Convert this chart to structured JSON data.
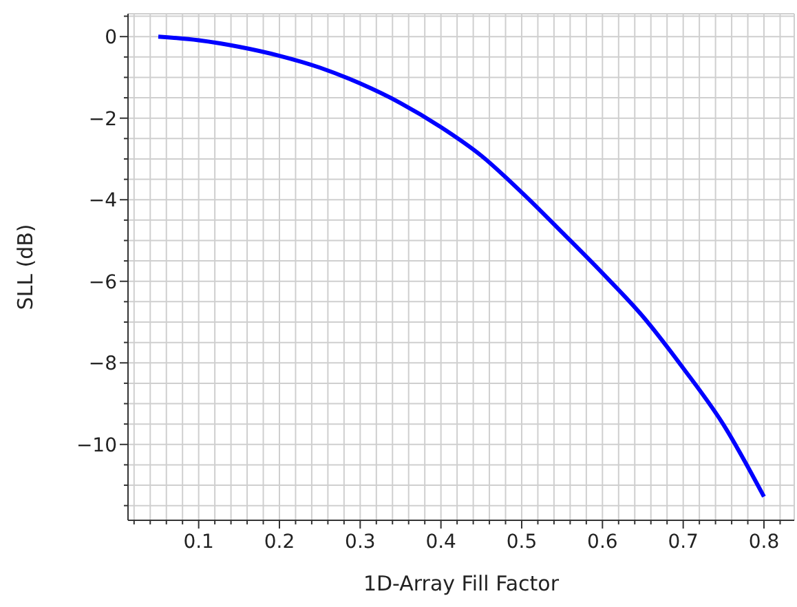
{
  "chart_data": {
    "type": "line",
    "xlabel": "1D-Array Fill Factor",
    "ylabel": "SLL (dB)",
    "x": [
      0.05,
      0.1,
      0.15,
      0.2,
      0.25,
      0.3,
      0.35,
      0.4,
      0.45,
      0.5,
      0.55,
      0.6,
      0.65,
      0.7,
      0.75,
      0.8
    ],
    "series": [
      {
        "color": "#0000ff",
        "values": [
          0,
          -0.09,
          -0.25,
          -0.47,
          -0.76,
          -1.15,
          -1.63,
          -2.22,
          -2.92,
          -3.82,
          -4.8,
          -5.8,
          -6.86,
          -8.13,
          -9.52,
          -11.28
        ]
      }
    ],
    "xlim": [
      0.0125,
      0.8375
    ],
    "xticks": [
      {
        "value": 0.02,
        "label": null
      },
      {
        "value": 0.04,
        "label": null
      },
      {
        "value": 0.06,
        "label": null
      },
      {
        "value": 0.08,
        "label": null
      },
      0.1,
      {
        "value": 0.12,
        "label": null
      },
      {
        "value": 0.14,
        "label": null
      },
      {
        "value": 0.16,
        "label": null
      },
      {
        "value": 0.18,
        "label": null
      },
      0.2,
      {
        "value": 0.22,
        "label": null
      },
      {
        "value": 0.24,
        "label": null
      },
      {
        "value": 0.26,
        "label": null
      },
      {
        "value": 0.28,
        "label": null
      },
      0.3,
      {
        "value": 0.32,
        "label": null
      },
      {
        "value": 0.34,
        "label": null
      },
      {
        "value": 0.36,
        "label": null
      },
      {
        "value": 0.38,
        "label": null
      },
      0.4,
      {
        "value": 0.42,
        "label": null
      },
      {
        "value": 0.44,
        "label": null
      },
      {
        "value": 0.46,
        "label": null
      },
      {
        "value": 0.48,
        "label": null
      },
      0.5,
      {
        "value": 0.52,
        "label": null
      },
      {
        "value": 0.54,
        "label": null
      },
      {
        "value": 0.56,
        "label": null
      },
      {
        "value": 0.58,
        "label": null
      },
      0.6,
      {
        "value": 0.62,
        "label": null
      },
      {
        "value": 0.64,
        "label": null
      },
      {
        "value": 0.66,
        "label": null
      },
      {
        "value": 0.68,
        "label": null
      },
      0.7,
      {
        "value": 0.72,
        "label": null
      },
      {
        "value": 0.74,
        "label": null
      },
      {
        "value": 0.76,
        "label": null
      },
      {
        "value": 0.78,
        "label": null
      },
      0.8,
      {
        "value": 0.82,
        "label": null
      }
    ],
    "ylim": [
      -11.86,
      0.56
    ],
    "yticks": [
      {
        "value": -11.5,
        "label": null
      },
      {
        "value": -11,
        "label": null
      },
      {
        "value": -10.5,
        "label": null
      },
      {
        "value": -10,
        "label": "−10"
      },
      {
        "value": -9.5,
        "label": null
      },
      {
        "value": -9,
        "label": null
      },
      {
        "value": -8.5,
        "label": null
      },
      {
        "value": -8,
        "label": "−8"
      },
      {
        "value": -7.5,
        "label": null
      },
      {
        "value": -7,
        "label": null
      },
      {
        "value": -6.5,
        "label": null
      },
      {
        "value": -6,
        "label": "−6"
      },
      {
        "value": -5.5,
        "label": null
      },
      {
        "value": -5,
        "label": null
      },
      {
        "value": -4.5,
        "label": null
      },
      {
        "value": -4,
        "label": "−4"
      },
      {
        "value": -3.5,
        "label": null
      },
      {
        "value": -3,
        "label": null
      },
      {
        "value": -2.5,
        "label": null
      },
      {
        "value": -2,
        "label": "−2"
      },
      {
        "value": -1.5,
        "label": null
      },
      {
        "value": -1,
        "label": null
      },
      {
        "value": -0.5,
        "label": null
      },
      0,
      {
        "value": 0.5,
        "label": null
      }
    ],
    "grid": true,
    "marker": "none",
    "line_style": "solid"
  }
}
